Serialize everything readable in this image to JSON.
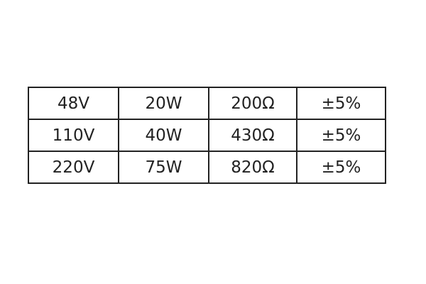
{
  "table": {
    "rows": [
      [
        "48V",
        "20W",
        "200Ω",
        "±5%"
      ],
      [
        "110V",
        "40W",
        "430Ω",
        "±5%"
      ],
      [
        "220V",
        "75W",
        "820Ω",
        "±5%"
      ]
    ]
  }
}
